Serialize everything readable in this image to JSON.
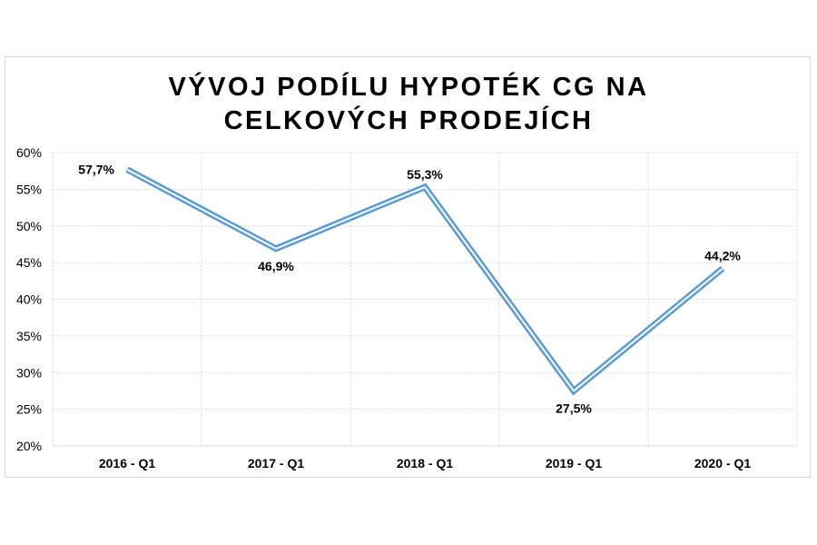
{
  "chart_data": {
    "type": "line",
    "title_lines": [
      "VÝVOJ PODÍLU HYPOTÉK CG NA",
      "CELKOVÝCH PRODEJÍCH"
    ],
    "categories": [
      "2016 - Q1",
      "2017 - Q1",
      "2018 - Q1",
      "2019 - Q1",
      "2020 - Q1"
    ],
    "values": [
      57.7,
      46.9,
      55.3,
      27.5,
      44.2
    ],
    "data_labels": [
      "57,7%",
      "46,9%",
      "55,3%",
      "27,5%",
      "44,2%"
    ],
    "y_ticks": [
      "20%",
      "25%",
      "30%",
      "35%",
      "40%",
      "45%",
      "50%",
      "55%",
      "60%"
    ],
    "ylim": [
      20,
      60
    ],
    "y_step": 5,
    "grid": true,
    "legend": "none",
    "line_color": "#5b9bd5",
    "line_inner_color": "#ffffff",
    "grid_color": "#d9d9d9"
  }
}
